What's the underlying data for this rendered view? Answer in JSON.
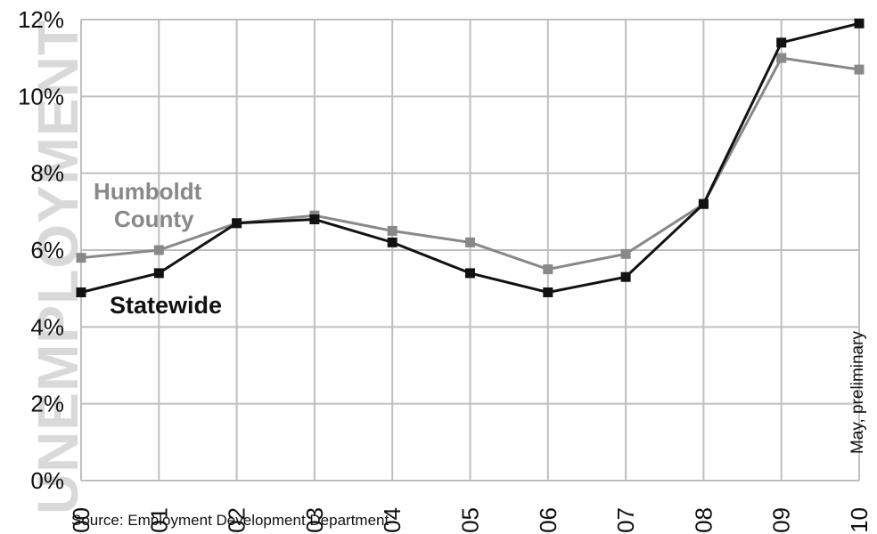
{
  "watermark": "UNEMPLOYMENT",
  "source": "Source: Employment Development Department",
  "colors": {
    "humboldt": "#888888",
    "statewide": "#111111",
    "grid": "#bfbfbf",
    "watermark": "#d9d9d9"
  },
  "chart_data": {
    "type": "line",
    "x": [
      "2000",
      "2001",
      "2002",
      "2003",
      "2004",
      "2005",
      "2006",
      "2007",
      "2008",
      "2009",
      "2010"
    ],
    "ylim": [
      0,
      12
    ],
    "y_ticks": [
      "0%",
      "2%",
      "4%",
      "6%",
      "8%",
      "10%",
      "12%"
    ],
    "grid": true,
    "annotation": "May, preliminary",
    "series": [
      {
        "name": "Humboldt County",
        "label_lines": [
          "Humboldt",
          "County"
        ],
        "values": [
          5.8,
          6.0,
          6.7,
          6.9,
          6.5,
          6.2,
          5.5,
          5.9,
          7.2,
          11.0,
          10.7
        ]
      },
      {
        "name": "Statewide",
        "label_lines": [
          "Statewide"
        ],
        "values": [
          4.9,
          5.4,
          6.7,
          6.8,
          6.2,
          5.4,
          4.9,
          5.3,
          7.2,
          11.4,
          11.9
        ]
      }
    ]
  }
}
